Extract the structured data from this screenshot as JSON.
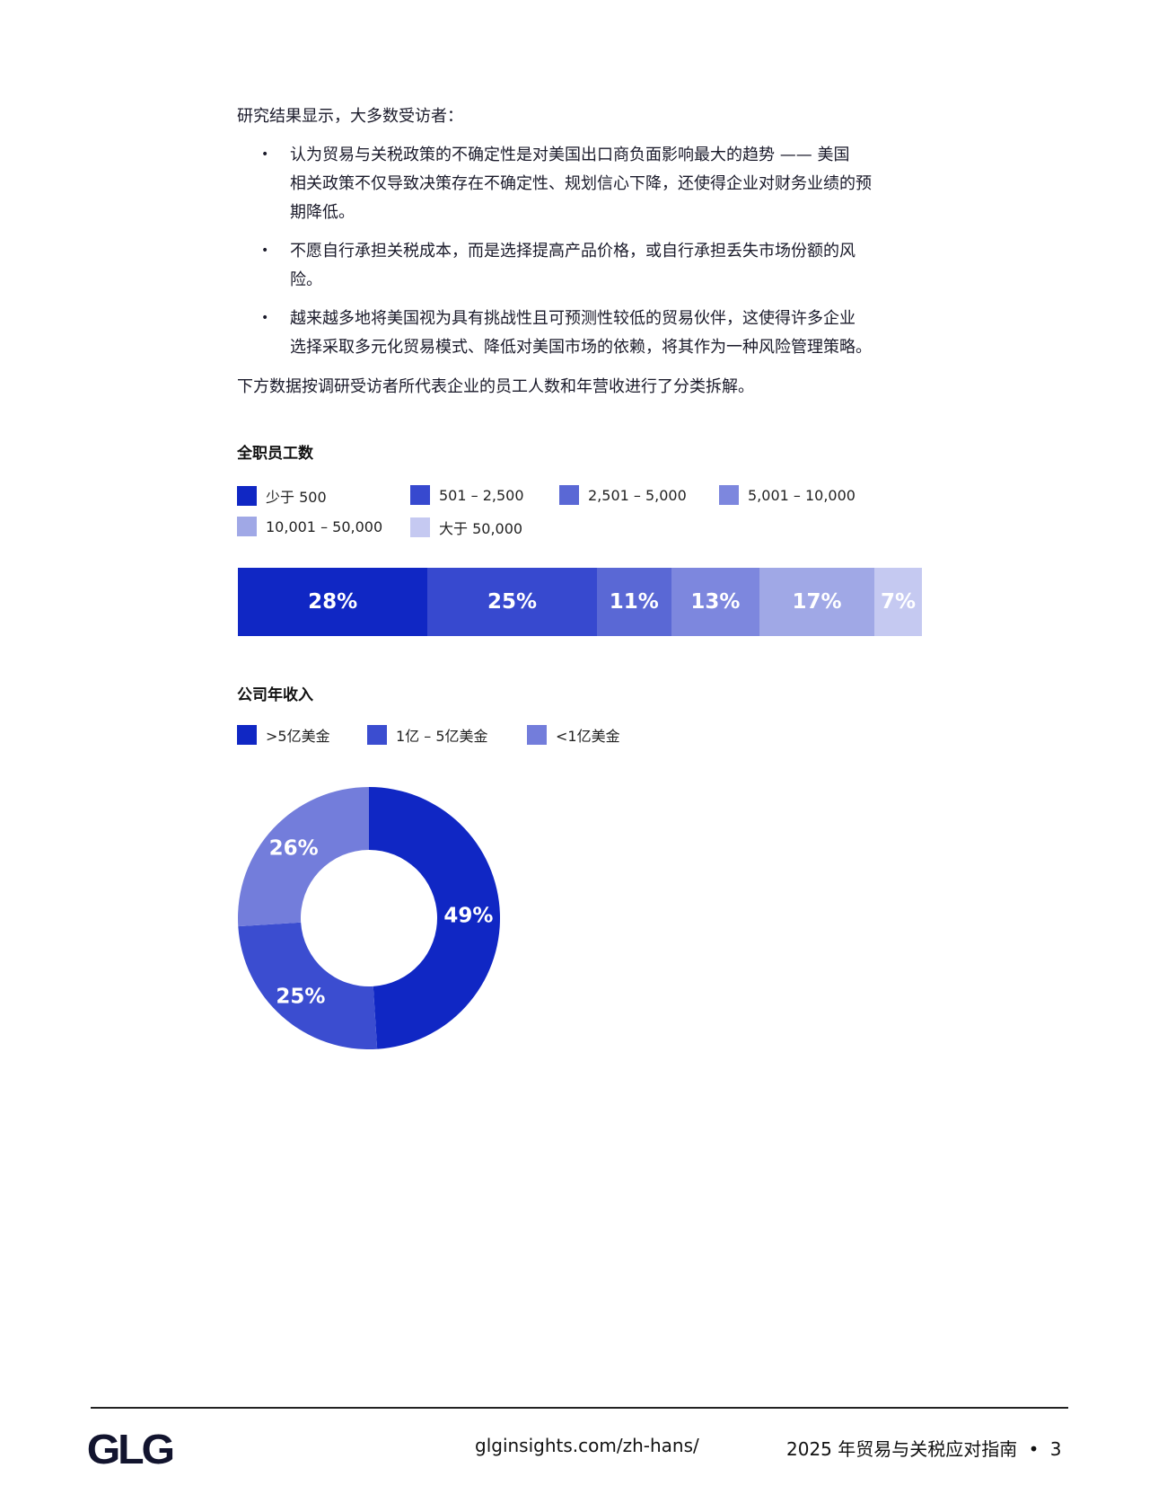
{
  "intro": "研究结果显示，大多数受访者：",
  "bullets": [
    {
      "lines": [
        "认为贸易与关税政策的不确定性是对美国出口商负面影响最大的趋势 —— 美国",
        "相关政策不仅导致决策存在不确定性、规划信心下降，还使得企业对财务业绩的预",
        "期降低。"
      ]
    },
    {
      "lines": [
        "不愿自行承担关税成本，而是选择提高产品价格，或自行承担丢失市场份额的风",
        "险。"
      ]
    },
    {
      "lines": [
        "越来越多地将美国视为具有挑战性且可预测性较低的贸易伙伴，这使得许多企业",
        "选择采取多元化贸易模式、降低对美国市场的依赖，将其作为一种风险管理策略。"
      ]
    }
  ],
  "bullet_symbol": "•",
  "summary": "下方数据按调研受访者所代表企业的员工人数和年营收进行了分类拆解。",
  "chart_data": [
    {
      "type": "bar",
      "orientation": "horizontal-stacked",
      "title": "全职员工数",
      "categories": [
        "少于 500",
        "501 – 2,500",
        "2,501 – 5,000",
        "5,001 – 10,000",
        "10,001 – 50,000",
        "大于 50,000"
      ],
      "values": [
        28,
        25,
        11,
        13,
        17,
        7
      ],
      "labels": [
        "28%",
        "25%",
        "11%",
        "13%",
        "17%",
        "7%"
      ],
      "colors": [
        "#1027c4",
        "#3749cf",
        "#5a68d5",
        "#7d87de",
        "#a0a8e6",
        "#c5c9f1"
      ],
      "legend": "top"
    },
    {
      "type": "pie",
      "variant": "donut",
      "title": "公司年收入",
      "categories": [
        ">5亿美金",
        "1亿 – 5亿美金",
        "<1亿美金"
      ],
      "values": [
        49,
        25,
        26
      ],
      "labels": [
        "49%",
        "25%",
        "26%"
      ],
      "colors": [
        "#1027c4",
        "#3b4dd0",
        "#737ddb"
      ],
      "legend": "top"
    }
  ],
  "footer": {
    "logo": "GLG",
    "url": "glginsights.com/zh-hans/",
    "doc_title": "2025 年贸易与关税应对指南",
    "separator": "•",
    "page": "3"
  }
}
